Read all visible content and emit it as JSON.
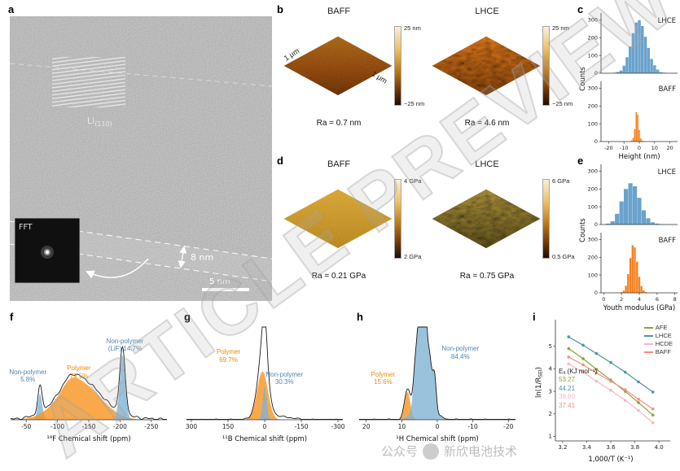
{
  "figure": {
    "watermark": "ARTICLE PREVIEW",
    "footer_caption_1": "公众号",
    "footer_caption_2": "新欣电池技术"
  },
  "panel_a": {
    "label": "a",
    "lattice_base": "Li",
    "lattice_sub": "(110)",
    "thickness": "8 nm",
    "fft": "FFT",
    "scalebar": "5 nm"
  },
  "panel_b": {
    "label": "b",
    "images": [
      {
        "title": "BAFF",
        "ra": "Ra = 0.7 nm",
        "scale_top": "25 nm",
        "scale_bottom": "−25 nm",
        "axis_left": "1 μm",
        "axis_right": "1 μm"
      },
      {
        "title": "LHCE",
        "ra": "Ra = 4.6 nm",
        "scale_top": "25 nm",
        "scale_bottom": "−25 nm"
      }
    ]
  },
  "panel_d": {
    "label": "d",
    "images": [
      {
        "title": "BAFF",
        "ra": "Ra = 0.21 GPa",
        "scale_top": "4 GPa",
        "scale_bottom": "2 GPa"
      },
      {
        "title": "LHCE",
        "ra": "Ra = 0.75 GPa",
        "scale_top": "6 GPa",
        "scale_bottom": "0.5 GPa"
      }
    ]
  },
  "panel_labels": {
    "c": "c",
    "e": "e",
    "f": "f",
    "g": "g",
    "h": "h",
    "i": "i"
  },
  "chart_data": [
    {
      "id": "c",
      "type": "bar",
      "title": "",
      "xlabel": "Height (nm)",
      "ylabel": "Counts",
      "xlim": [
        -25,
        25
      ],
      "xticks": [
        -20,
        -10,
        0,
        10,
        20
      ],
      "ylim": [
        0,
        320
      ],
      "yticks": [
        0,
        100,
        200,
        300
      ],
      "series": [
        {
          "name": "LHCE",
          "color": "#6aa3cc",
          "x": [
            -20,
            -18,
            -16,
            -14,
            -12,
            -10,
            -8,
            -6,
            -4,
            -2,
            0,
            2,
            4,
            6,
            8,
            10,
            12,
            14,
            16,
            18,
            20
          ],
          "counts": [
            0,
            1,
            3,
            7,
            15,
            42,
            90,
            150,
            225,
            285,
            298,
            265,
            205,
            142,
            80,
            45,
            20,
            6,
            3,
            1,
            0
          ]
        },
        {
          "name": "BAFF",
          "color": "#f58220",
          "x": [
            -6,
            -5,
            -4,
            -3,
            -2,
            -1,
            0,
            1,
            2,
            3
          ],
          "counts": [
            2,
            6,
            20,
            70,
            165,
            150,
            65,
            18,
            5,
            1
          ]
        }
      ]
    },
    {
      "id": "e",
      "type": "bar",
      "title": "",
      "xlabel": "Youth modulus (GPa)",
      "ylabel": "Counts",
      "xlim": [
        -0.3,
        8.3
      ],
      "xticks": [
        0,
        2,
        4,
        6,
        8
      ],
      "ylim": [
        0,
        320
      ],
      "yticks": [
        0,
        100,
        200,
        300
      ],
      "series": [
        {
          "name": "LHCE",
          "color": "#6aa3cc",
          "x": [
            0.5,
            1,
            1.5,
            2,
            2.5,
            3,
            3.5,
            4,
            4.5,
            5,
            5.5,
            6,
            6.5,
            7
          ],
          "counts": [
            5,
            18,
            60,
            130,
            200,
            232,
            215,
            150,
            80,
            35,
            12,
            5,
            2,
            1
          ]
        },
        {
          "name": "BAFF",
          "color": "#f58220",
          "x": [
            2,
            2.25,
            2.5,
            2.75,
            3,
            3.25,
            3.5,
            3.75,
            4,
            4.25,
            4.5,
            4.75,
            5
          ],
          "counts": [
            4,
            12,
            40,
            105,
            195,
            268,
            255,
            175,
            90,
            38,
            13,
            4,
            1
          ]
        }
      ]
    },
    {
      "id": "f",
      "type": "area",
      "title": "",
      "xlabel": "¹⁹F Chemical shift (ppm)",
      "ylabel": "",
      "xlim": [
        -25,
        -275
      ],
      "xticks": [
        -50,
        -100,
        -150,
        -200,
        -250
      ],
      "noise": 0.015,
      "components": [
        {
          "name": "Non-polymer",
          "pct": "5.8%",
          "label_lines": [
            "Non-polymer",
            "5.8%"
          ],
          "color": "#7fb3d5",
          "label_color": "#4f86b0",
          "peaks": [
            {
              "c": -72,
              "w": 3.5,
              "h": 0.28
            }
          ],
          "label_pos": {
            "x": 0.13,
            "y": 0.4
          }
        },
        {
          "name": "Polymer",
          "pct": "79.5%",
          "label_lines": [
            "Polymer",
            "79.5%"
          ],
          "color": "#f7941d",
          "label_color": "#ee8a00",
          "peaks": [
            {
              "c": -135,
              "w": 33,
              "h": 0.4
            },
            {
              "c": -120,
              "w": 12,
              "h": 0.08
            }
          ],
          "label_pos": {
            "x": 0.44,
            "y": 0.37
          }
        },
        {
          "name": "Non-polymer (LiF)",
          "pct": "14.7%",
          "label_lines": [
            "Non-polymer",
            "(LiF) 14.7%"
          ],
          "color": "#7fb3d5",
          "label_color": "#4f86b0",
          "peaks": [
            {
              "c": -204,
              "w": 4.5,
              "h": 0.7
            }
          ],
          "label_pos": {
            "x": 0.72,
            "y": 0.15
          }
        }
      ],
      "envelope_extra": [
        {
          "c": -150,
          "w": 60,
          "h": 0.04
        }
      ]
    },
    {
      "id": "g",
      "type": "area",
      "title": "",
      "xlabel": "¹¹B Chemical shift (ppm)",
      "ylabel": "",
      "xlim": [
        320,
        -320
      ],
      "xticks": [
        300,
        150,
        0,
        -150,
        -300
      ],
      "noise": 0.008,
      "components": [
        {
          "name": "Polymer",
          "pct": "69.7%",
          "label_lines": [
            "Polymer",
            "69.7%"
          ],
          "color": "#f7941d",
          "label_color": "#ee8a00",
          "peaks": [
            {
              "c": 9,
              "w": 22,
              "h": 0.52
            }
          ],
          "label_pos": {
            "x": 0.28,
            "y": 0.24
          }
        },
        {
          "name": "Non-polymer",
          "pct": "30.3%",
          "label_lines": [
            "Non-polymer",
            "30.3%"
          ],
          "color": "#7fb3d5",
          "label_color": "#4f86b0",
          "peaks": [
            {
              "c": 0,
              "w": 8,
              "h": 0.36
            }
          ],
          "label_pos": {
            "x": 0.62,
            "y": 0.42
          }
        }
      ],
      "envelope_extra": [
        {
          "c": 3,
          "w": 15,
          "h": 0.33
        },
        {
          "c": -40,
          "w": 60,
          "h": 0.04
        }
      ]
    },
    {
      "id": "h",
      "type": "area",
      "title": "",
      "xlabel": "¹H Chemical shift (ppm)",
      "ylabel": "",
      "xlim": [
        22,
        -22
      ],
      "xticks": [
        20,
        10,
        0,
        -10,
        -20
      ],
      "noise": 0.01,
      "components": [
        {
          "name": "Polymer",
          "pct": "15.6%",
          "label_lines": [
            "Polymer",
            "15.6%"
          ],
          "color": "#f7941d",
          "label_color": "#ee8a00",
          "peaks": [
            {
              "c": 8.4,
              "w": 0.8,
              "h": 0.3
            }
          ],
          "label_pos": {
            "x": 0.17,
            "y": 0.42
          }
        },
        {
          "name": "Non-polymer",
          "pct": "84.4%",
          "label_lines": [
            "Non-polymer",
            "84.4%"
          ],
          "color": "#7fb3d5",
          "label_color": "#4f86b0",
          "peaks": [
            {
              "c": 6.1,
              "w": 0.6,
              "h": 0.5
            },
            {
              "c": 5.1,
              "w": 0.5,
              "h": 0.72
            },
            {
              "c": 4.2,
              "w": 0.45,
              "h": 0.85
            },
            {
              "c": 3.3,
              "w": 0.5,
              "h": 0.65
            },
            {
              "c": 2.2,
              "w": 0.6,
              "h": 0.5
            },
            {
              "c": 0.8,
              "w": 0.5,
              "h": 0.38
            },
            {
              "c": 3.8,
              "w": 2.5,
              "h": 0.22
            }
          ],
          "label_pos": {
            "x": 0.64,
            "y": 0.21
          }
        }
      ],
      "envelope_extra": [
        {
          "c": 4.7,
          "w": 0.18,
          "h": 0.2
        },
        {
          "c": 3.0,
          "w": 0.15,
          "h": 0.15
        }
      ]
    },
    {
      "id": "i",
      "type": "line",
      "title": "",
      "xlabel": "1,000/T (K⁻¹)",
      "ylabel_parts": {
        "pre": "ln(1/R",
        "sub": "SEI",
        "post": ")"
      },
      "ea_title": "Eₐ (KJ mol⁻¹)",
      "legend_position": "top-right",
      "xlim": [
        3.14,
        4.06
      ],
      "xticks": [
        3.2,
        3.4,
        3.6,
        3.8,
        4.0
      ],
      "ylim": [
        0.8,
        6.0
      ],
      "yticks": [
        1,
        2,
        3,
        4,
        5
      ],
      "x": [
        3.25,
        3.37,
        3.48,
        3.6,
        3.72,
        3.83,
        3.95
      ],
      "series": [
        {
          "name": "AFE",
          "color": "#8ba33b",
          "ea": "53.27",
          "y": [
            4.9,
            4.45,
            3.98,
            3.5,
            3.0,
            2.5,
            1.95
          ]
        },
        {
          "name": "LHCE",
          "color": "#4e93a8",
          "ea": "44.21",
          "y": [
            5.42,
            5.05,
            4.68,
            4.28,
            3.85,
            3.42,
            2.97
          ]
        },
        {
          "name": "HCDE",
          "color": "#f3b9c6",
          "ea": "39.80",
          "y": [
            4.22,
            3.85,
            3.45,
            3.05,
            2.6,
            2.15,
            1.6
          ]
        },
        {
          "name": "BAFF",
          "color": "#f2907b",
          "ea": "37.41",
          "y": [
            4.52,
            4.18,
            3.82,
            3.45,
            3.07,
            2.65,
            2.22
          ]
        }
      ]
    }
  ]
}
